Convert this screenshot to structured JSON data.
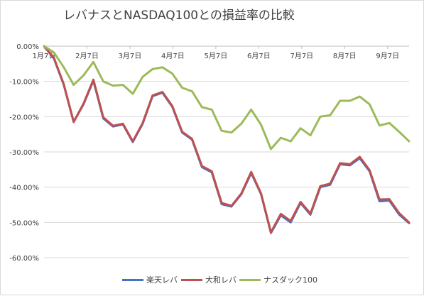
{
  "chart_data": {
    "type": "line",
    "title": "レバナスとNASDAQ100との損益率の比較",
    "ylim": [
      -0.6,
      0
    ],
    "y_ticks": [
      "0.00%",
      "-10.00%",
      "-20.00%",
      "-30.00%",
      "-40.00%",
      "-50.00%",
      "-60.00%"
    ],
    "x_tick_labels": [
      "1月7日",
      "2月7日",
      "3月7日",
      "4月7日",
      "5月7日",
      "6月7日",
      "7月7日",
      "8月7日",
      "9月7日"
    ],
    "grid": true,
    "legend_position": "bottom",
    "series": [
      {
        "name": "楽天レバ",
        "color": "#4472c4",
        "values": [
          0,
          -0.035,
          -0.11,
          -0.215,
          -0.165,
          -0.098,
          -0.205,
          -0.228,
          -0.222,
          -0.272,
          -0.22,
          -0.142,
          -0.132,
          -0.172,
          -0.245,
          -0.265,
          -0.343,
          -0.358,
          -0.448,
          -0.455,
          -0.42,
          -0.36,
          -0.42,
          -0.53,
          -0.48,
          -0.5,
          -0.445,
          -0.478,
          -0.4,
          -0.393,
          -0.335,
          -0.338,
          -0.318,
          -0.355,
          -0.44,
          -0.438,
          -0.478,
          -0.502
        ]
      },
      {
        "name": "大和レバ",
        "color": "#c0504d",
        "values": [
          0,
          -0.033,
          -0.108,
          -0.215,
          -0.163,
          -0.095,
          -0.202,
          -0.226,
          -0.22,
          -0.27,
          -0.218,
          -0.14,
          -0.13,
          -0.17,
          -0.243,
          -0.263,
          -0.34,
          -0.355,
          -0.445,
          -0.453,
          -0.418,
          -0.357,
          -0.418,
          -0.528,
          -0.476,
          -0.496,
          -0.442,
          -0.475,
          -0.397,
          -0.39,
          -0.332,
          -0.335,
          -0.314,
          -0.352,
          -0.435,
          -0.434,
          -0.474,
          -0.5
        ]
      },
      {
        "name": "ナスダック100",
        "color": "#9bbb59",
        "values": [
          0,
          -0.018,
          -0.06,
          -0.11,
          -0.083,
          -0.045,
          -0.1,
          -0.112,
          -0.11,
          -0.135,
          -0.087,
          -0.065,
          -0.06,
          -0.078,
          -0.118,
          -0.128,
          -0.173,
          -0.18,
          -0.24,
          -0.245,
          -0.22,
          -0.18,
          -0.223,
          -0.292,
          -0.26,
          -0.27,
          -0.233,
          -0.253,
          -0.2,
          -0.196,
          -0.155,
          -0.155,
          -0.143,
          -0.165,
          -0.225,
          -0.218,
          -0.243,
          -0.27
        ]
      }
    ]
  }
}
